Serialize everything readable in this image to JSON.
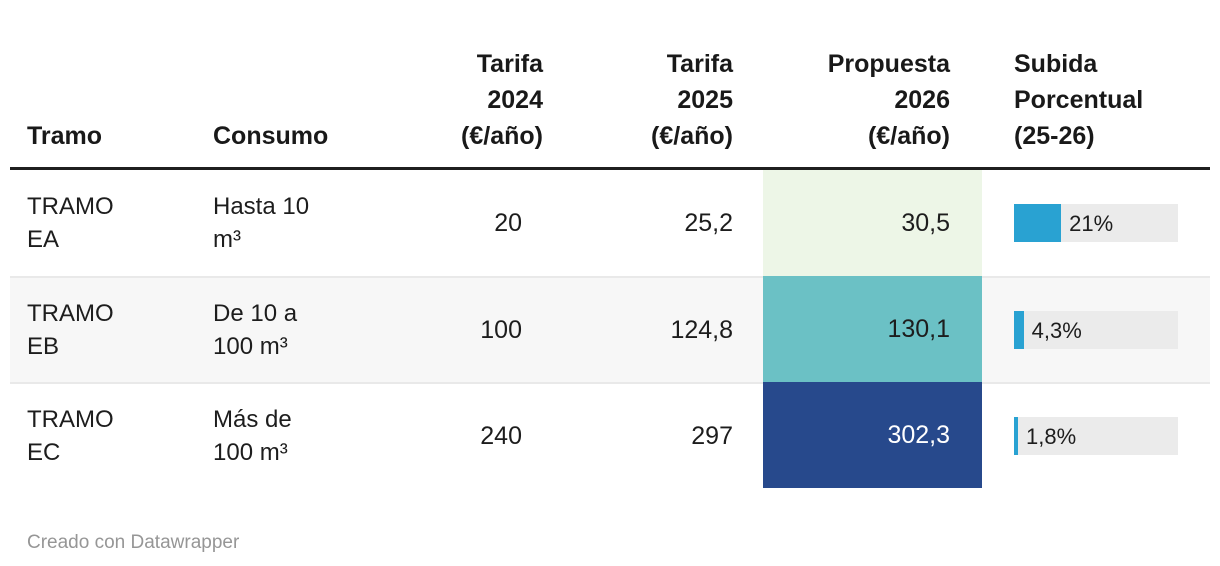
{
  "header": {
    "columns": [
      {
        "id": "tramo",
        "label": "Tramo"
      },
      {
        "id": "consumo",
        "label": "Consumo"
      },
      {
        "id": "tarifa2024",
        "label": "Tarifa\n2024\n(€/año)"
      },
      {
        "id": "tarifa2025",
        "label": "Tarifa\n2025\n(€/año)"
      },
      {
        "id": "propuesta2026",
        "label": "Propuesta\n2026\n(€/año)"
      },
      {
        "id": "subida",
        "label": "Subida\nPorcentual\n(25-26)"
      }
    ]
  },
  "rows": [
    {
      "tramo": "TRAMO\nEA",
      "consumo": "Hasta 10\nm³",
      "tarifa_2024": "20",
      "tarifa_2025": "25,2",
      "propuesta_2026": "30,5",
      "propuesta_bg": "#edf6e7",
      "propuesta_fg": "#1d1d1d",
      "subida_label": "21%",
      "subida_value": 21
    },
    {
      "tramo": "TRAMO\nEB",
      "consumo": "De 10 a\n100 m³",
      "tarifa_2024": "100",
      "tarifa_2025": "124,8",
      "propuesta_2026": "130,1",
      "propuesta_bg": "#6bc1c5",
      "propuesta_fg": "#1d1d1d",
      "subida_label": "4,3%",
      "subida_value": 4.3
    },
    {
      "tramo": "TRAMO\nEC",
      "consumo": "Más de\n100 m³",
      "tarifa_2024": "240",
      "tarifa_2025": "297",
      "propuesta_2026": "302,3",
      "propuesta_bg": "#27498c",
      "propuesta_fg": "#ffffff",
      "subida_label": "1,8%",
      "subida_value": 1.8
    }
  ],
  "bars": {
    "scale_max": 73,
    "fill_color": "#29a2d2",
    "track_color": "#ebebeb"
  },
  "footer": {
    "credit": "Creado con Datawrapper"
  },
  "colors": {
    "heat_green": "#edf6e7",
    "heat_teal": "#6bc1c5",
    "heat_dark_blue": "#27498c",
    "bar_blue": "#29a2d2",
    "bar_track_gray": "#ebebeb",
    "alt_row_bg": "#f7f7f7",
    "header_rule": "#1f1f1f",
    "row_separator": "#e9e9e9",
    "credit_gray": "#969696"
  },
  "chart_data": {
    "type": "table",
    "title": "",
    "columns": [
      "Tramo",
      "Consumo",
      "Tarifa 2024 (€/año)",
      "Tarifa 2025 (€/año)",
      "Propuesta 2026 (€/año)",
      "Subida Porcentual (25-26)"
    ],
    "rows": [
      [
        "TRAMO EA",
        "Hasta 10 m³",
        20,
        25.2,
        30.5,
        "21%"
      ],
      [
        "TRAMO EB",
        "De 10 a 100 m³",
        100,
        124.8,
        130.1,
        "4,3%"
      ],
      [
        "TRAMO EC",
        "Más de 100 m³",
        240,
        297,
        302.3,
        "1,8%"
      ]
    ],
    "subida_bar_values_percent": [
      21,
      4.3,
      1.8
    ],
    "propuesta_heatmap_colors": [
      "#edf6e7",
      "#6bc1c5",
      "#27498c"
    ],
    "notes": "Propuesta 2026 column shaded as heatmap; Subida Porcentual shown as horizontal bars on gray tracks"
  }
}
